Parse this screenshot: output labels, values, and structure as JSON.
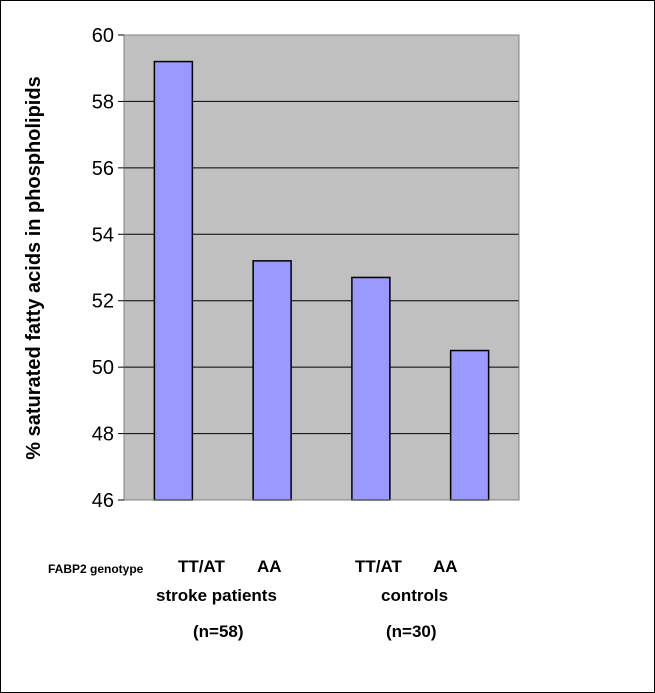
{
  "chart_data": {
    "type": "bar",
    "ylabel": "% saturated fatty acids in phospholipids",
    "ylim": [
      46,
      60
    ],
    "yticks": [
      46,
      48,
      50,
      52,
      54,
      56,
      58,
      60
    ],
    "grid": true,
    "background": "#c0c0c0",
    "bar_color": "#9999ff",
    "categories": [
      "TT/AT",
      "AA",
      "TT/AT",
      "AA"
    ],
    "values": [
      59.2,
      53.2,
      52.7,
      50.5
    ]
  },
  "labels": {
    "genotype_prefix": "FABP2 genotype",
    "group1_tt": "TT/AT",
    "group1_aa": "AA",
    "group1_name": "stroke patients",
    "group1_n": "(n=58)",
    "group2_tt": "TT/AT",
    "group2_aa": "AA",
    "group2_name": "controls",
    "group2_n": "(n=30)"
  }
}
